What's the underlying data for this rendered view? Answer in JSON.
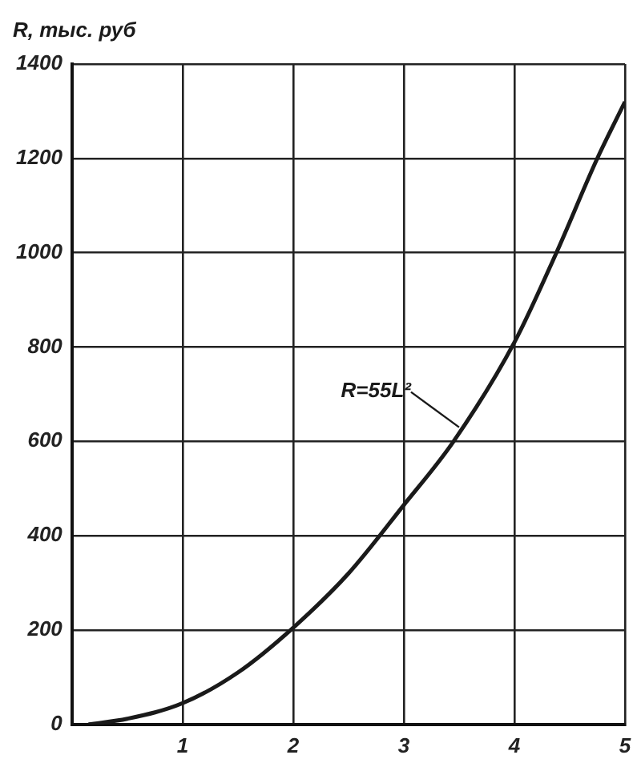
{
  "chart_data": {
    "type": "line",
    "ylabel": "R, тыс. руб",
    "x": [
      0.15,
      0.5,
      1,
      1.5,
      2,
      2.5,
      3,
      3.45,
      4,
      4.38,
      4.75,
      5
    ],
    "series": [
      {
        "color": "#1a1a1a",
        "values": [
          0,
          12,
          45,
          110,
          205,
          320,
          465,
          600,
          810,
          1000,
          1200,
          1320
        ]
      }
    ],
    "xlim": [
      0,
      5
    ],
    "xticks": [
      {
        "value": 0,
        "label": null
      },
      1,
      2,
      3,
      4,
      5
    ],
    "ylim": [
      0,
      1400
    ],
    "yticks": [
      0,
      200,
      400,
      600,
      800,
      1000,
      1200,
      1400
    ],
    "grid": true,
    "legend": false,
    "marker": "none",
    "line_style": "solid",
    "annotations": [
      {
        "text": "R=55L²",
        "x": 3.5,
        "y": 630
      }
    ]
  }
}
